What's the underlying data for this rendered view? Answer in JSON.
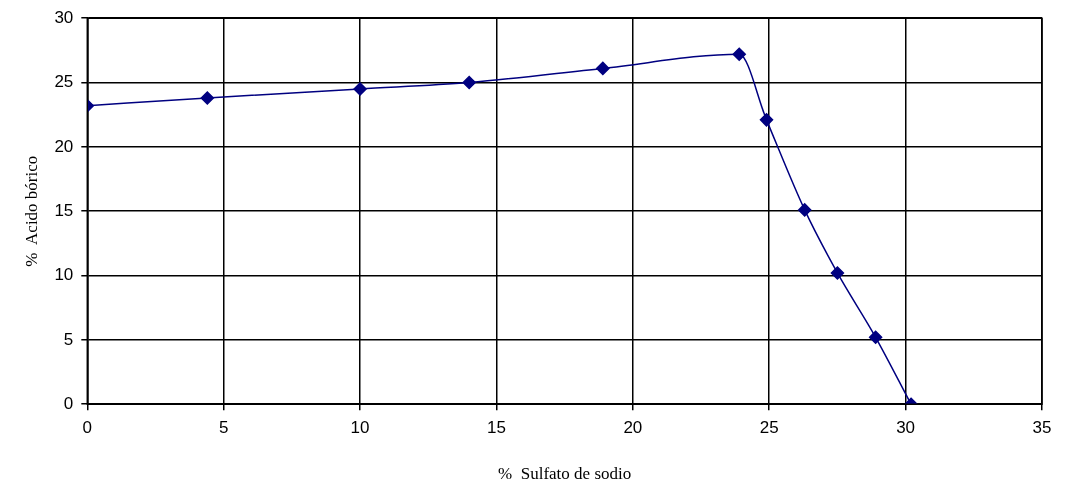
{
  "chart_data": {
    "type": "line",
    "xlabel": "%  Sulfato de sodio",
    "ylabel": "%  Acido bórico",
    "series": [
      {
        "color": "#000080",
        "x": [
          0,
          4.4,
          10,
          14,
          18.9,
          23.9,
          24.9,
          26.3,
          27.5,
          28.9,
          30.2
        ],
        "values": [
          23.2,
          23.8,
          24.5,
          25.0,
          26.1,
          27.2,
          22.1,
          15.1,
          10.2,
          5.2,
          0
        ]
      }
    ],
    "xlim": [
      0,
      35
    ],
    "xticks": [
      0,
      5,
      10,
      15,
      20,
      25,
      30,
      35
    ],
    "ylim": [
      0,
      30
    ],
    "yticks": [
      0,
      5,
      10,
      15,
      20,
      25,
      30
    ],
    "grid": true,
    "legend": false,
    "marker": "diamond",
    "line_style": "solid"
  }
}
